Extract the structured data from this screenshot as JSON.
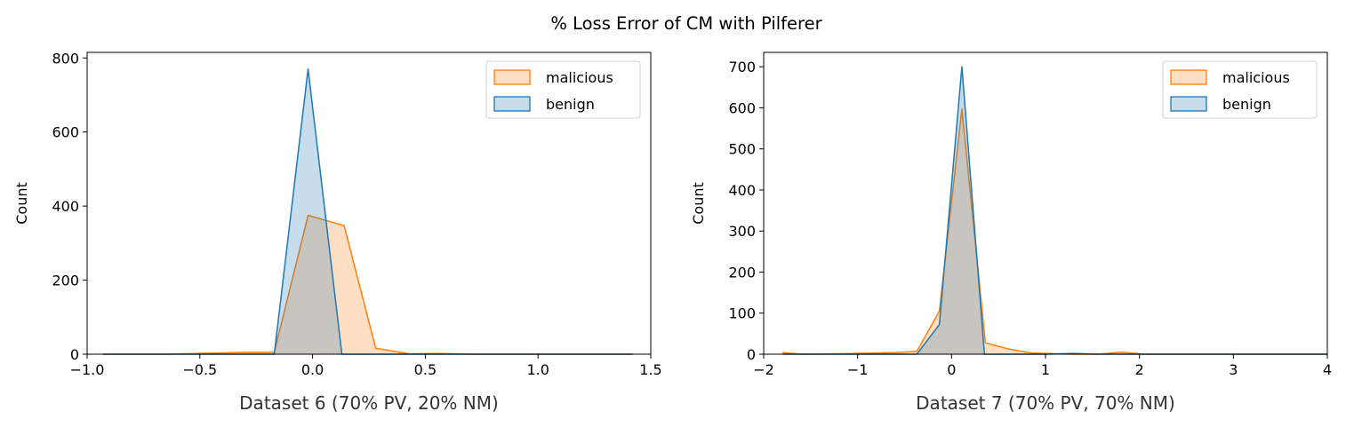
{
  "suptitle": "% Loss Error of CM with Pilferer",
  "colors": {
    "malicious": "#ff7f0e",
    "benign": "#1f77b4"
  },
  "chart_data": [
    {
      "type": "area",
      "xlabel": "Dataset 6 (70% PV, 20% NM)",
      "ylabel": "Count",
      "xlim": [
        -1.0,
        1.5
      ],
      "ylim": [
        0,
        815
      ],
      "xticks": [
        -1.0,
        -0.5,
        0.0,
        0.5,
        1.0,
        1.5
      ],
      "xtick_labels": [
        "−1.0",
        "−0.5",
        "0.0",
        "0.5",
        "1.0",
        "1.5"
      ],
      "yticks": [
        0,
        200,
        400,
        600,
        800
      ],
      "ytick_labels": [
        "0",
        "200",
        "400",
        "600",
        "800"
      ],
      "legend_position": "upper right",
      "grid": false,
      "series": [
        {
          "name": "malicious",
          "points": [
            [
              -0.93,
              0
            ],
            [
              -0.79,
              0
            ],
            [
              -0.65,
              0
            ],
            [
              -0.51,
              2
            ],
            [
              -0.37,
              4
            ],
            [
              -0.31,
              5
            ],
            [
              -0.17,
              5
            ],
            [
              -0.02,
              375
            ],
            [
              0.14,
              347
            ],
            [
              0.28,
              16
            ],
            [
              0.43,
              1
            ],
            [
              0.57,
              2
            ],
            [
              0.71,
              0
            ],
            [
              0.85,
              0
            ],
            [
              1.0,
              0
            ],
            [
              1.14,
              0
            ],
            [
              1.28,
              0
            ],
            [
              1.42,
              0
            ]
          ]
        },
        {
          "name": "benign",
          "points": [
            [
              -0.93,
              0
            ],
            [
              -0.79,
              0
            ],
            [
              -0.65,
              0
            ],
            [
              -0.51,
              0
            ],
            [
              -0.37,
              0
            ],
            [
              -0.17,
              0
            ],
            [
              -0.02,
              770
            ],
            [
              0.13,
              0
            ],
            [
              0.28,
              0
            ],
            [
              0.43,
              0
            ],
            [
              0.57,
              0
            ],
            [
              0.71,
              0
            ],
            [
              0.85,
              0
            ],
            [
              1.0,
              0
            ],
            [
              1.14,
              0
            ],
            [
              1.28,
              0
            ],
            [
              1.42,
              0
            ]
          ]
        }
      ]
    },
    {
      "type": "area",
      "xlabel": "Dataset 7 (70% PV, 70% NM)",
      "ylabel": "Count",
      "xlim": [
        -2,
        4
      ],
      "ylim": [
        0,
        735
      ],
      "xticks": [
        -2,
        -1,
        0,
        1,
        2,
        3,
        4
      ],
      "xtick_labels": [
        "−2",
        "−1",
        "0",
        "1",
        "2",
        "3",
        "4"
      ],
      "yticks": [
        0,
        100,
        200,
        300,
        400,
        500,
        600,
        700
      ],
      "ytick_labels": [
        "0",
        "100",
        "200",
        "300",
        "400",
        "500",
        "600",
        "700"
      ],
      "legend_position": "upper right",
      "grid": false,
      "series": [
        {
          "name": "malicious",
          "points": [
            [
              -1.8,
              4
            ],
            [
              -1.6,
              0
            ],
            [
              -1.2,
              1
            ],
            [
              -1.0,
              2
            ],
            [
              -0.6,
              4
            ],
            [
              -0.37,
              7
            ],
            [
              -0.13,
              105
            ],
            [
              0.11,
              597
            ],
            [
              0.36,
              28
            ],
            [
              0.6,
              13
            ],
            [
              0.85,
              3
            ],
            [
              1.1,
              1
            ],
            [
              1.3,
              0
            ],
            [
              1.55,
              0
            ],
            [
              1.8,
              5
            ],
            [
              2.05,
              0
            ],
            [
              2.5,
              0
            ],
            [
              3.0,
              0
            ],
            [
              3.5,
              0
            ],
            [
              4.0,
              0
            ]
          ]
        },
        {
          "name": "benign",
          "points": [
            [
              -1.8,
              0
            ],
            [
              -1.0,
              0
            ],
            [
              -0.37,
              0
            ],
            [
              -0.13,
              72
            ],
            [
              0.11,
              700
            ],
            [
              0.35,
              0
            ],
            [
              0.6,
              0
            ],
            [
              1.0,
              0
            ],
            [
              1.3,
              2
            ],
            [
              1.55,
              0
            ],
            [
              2.0,
              0
            ],
            [
              3.0,
              0
            ],
            [
              4.0,
              0
            ]
          ]
        }
      ]
    }
  ]
}
